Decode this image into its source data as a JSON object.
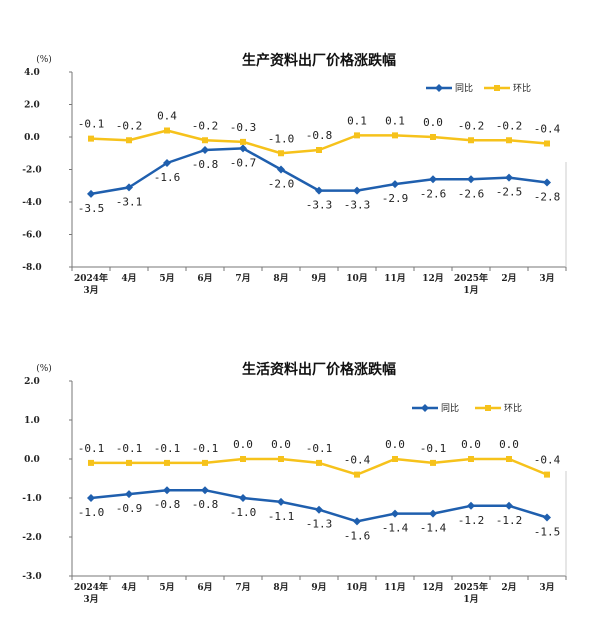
{
  "colors": {
    "yoy": "#1f5fae",
    "mom": "#f6c21b",
    "axis": "#777777"
  },
  "chart_data": [
    {
      "type": "line",
      "title": "生产资料出厂价格涨跌幅",
      "unit": "(%)",
      "categories": [
        [
          "2024年",
          "3月"
        ],
        [
          "4月"
        ],
        [
          "5月"
        ],
        [
          "6月"
        ],
        [
          "7月"
        ],
        [
          "8月"
        ],
        [
          "9月"
        ],
        [
          "10月"
        ],
        [
          "11月"
        ],
        [
          "12月"
        ],
        [
          "2025年",
          "1月"
        ],
        [
          "2月"
        ],
        [
          "3月"
        ]
      ],
      "ylim": [
        -8.0,
        4.0
      ],
      "yticks": [
        "4.0",
        "2.0",
        "0.0",
        "-2.0",
        "-4.0",
        "-6.0",
        "-8.0"
      ],
      "ytick_values": [
        4,
        2,
        0,
        -2,
        -4,
        -6,
        -8
      ],
      "legend_position": "top-right",
      "series": [
        {
          "name": "同比",
          "color": "#1f5fae",
          "marker": "diamond",
          "values": [
            -3.5,
            -3.1,
            -1.6,
            -0.8,
            -0.7,
            -2.0,
            -3.3,
            -3.3,
            -2.9,
            -2.6,
            -2.6,
            -2.5,
            -2.8
          ],
          "labels": [
            "-3.5",
            "-3.1",
            "-1.6",
            "-0.8",
            "-0.7",
            "-2.0",
            "-3.3",
            "-3.3",
            "-2.9",
            "-2.6",
            "-2.6",
            "-2.5",
            "-2.8"
          ]
        },
        {
          "name": "环比",
          "color": "#f6c21b",
          "marker": "square",
          "values": [
            -0.1,
            -0.2,
            0.4,
            -0.2,
            -0.3,
            -1.0,
            -0.8,
            0.1,
            0.1,
            0.0,
            -0.2,
            -0.2,
            -0.4
          ],
          "labels": [
            "-0.1",
            "-0.2",
            "0.4",
            "-0.2",
            "-0.3",
            "-1.0",
            "-0.8",
            "0.1",
            "0.1",
            "0.0",
            "-0.2",
            "-0.2",
            "-0.4"
          ]
        }
      ]
    },
    {
      "type": "line",
      "title": "生活资料出厂价格涨跌幅",
      "unit": "(%)",
      "categories": [
        [
          "2024年",
          "3月"
        ],
        [
          "4月"
        ],
        [
          "5月"
        ],
        [
          "6月"
        ],
        [
          "7月"
        ],
        [
          "8月"
        ],
        [
          "9月"
        ],
        [
          "10月"
        ],
        [
          "11月"
        ],
        [
          "12月"
        ],
        [
          "2025年",
          "1月"
        ],
        [
          "2月"
        ],
        [
          "3月"
        ]
      ],
      "ylim": [
        -3.0,
        2.0
      ],
      "yticks": [
        "2.0",
        "1.0",
        "0.0",
        "-1.0",
        "-2.0",
        "-3.0"
      ],
      "ytick_values": [
        2,
        1,
        0,
        -1,
        -2,
        -3
      ],
      "legend_position": "top-right",
      "series": [
        {
          "name": "同比",
          "color": "#1f5fae",
          "marker": "diamond",
          "values": [
            -1.0,
            -0.9,
            -0.8,
            -0.8,
            -1.0,
            -1.1,
            -1.3,
            -1.6,
            -1.4,
            -1.4,
            -1.2,
            -1.2,
            -1.5
          ],
          "labels": [
            "-1.0",
            "-0.9",
            "-0.8",
            "-0.8",
            "-1.0",
            "-1.1",
            "-1.3",
            "-1.6",
            "-1.4",
            "-1.4",
            "-1.2",
            "-1.2",
            "-1.5"
          ]
        },
        {
          "name": "环比",
          "color": "#f6c21b",
          "marker": "square",
          "values": [
            -0.1,
            -0.1,
            -0.1,
            -0.1,
            0.0,
            0.0,
            -0.1,
            -0.4,
            0.0,
            -0.1,
            0.0,
            0.0,
            -0.4
          ],
          "labels": [
            "-0.1",
            "-0.1",
            "-0.1",
            "-0.1",
            "0.0",
            "0.0",
            "-0.1",
            "-0.4",
            "0.0",
            "-0.1",
            "0.0",
            "0.0",
            "-0.4"
          ]
        }
      ]
    }
  ]
}
